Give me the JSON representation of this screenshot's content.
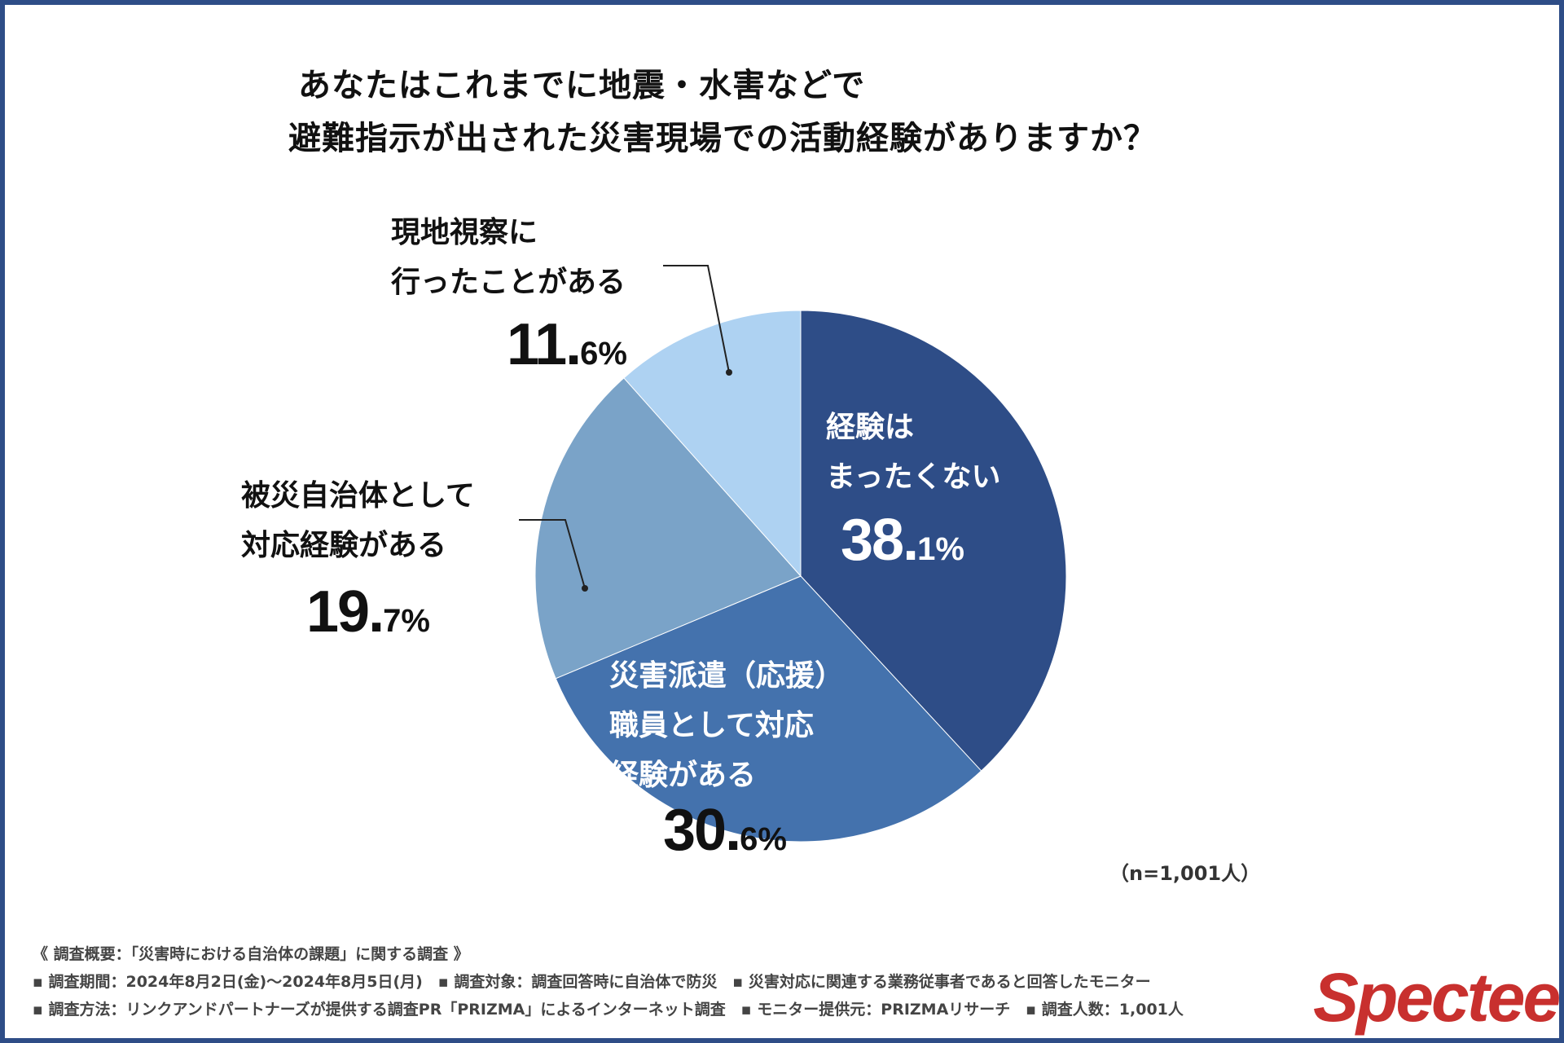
{
  "chart_data": {
    "type": "pie",
    "title": [
      "あなたはこれまでに地震・水害などで",
      "避難指示が出された災害現場での活動経験がありますか？"
    ],
    "slices": [
      {
        "label": [
          "経験は",
          "まったくない"
        ],
        "value": 38.1,
        "int": "38.",
        "dec": "1%",
        "color": "#2e4d87"
      },
      {
        "label": [
          "災害派遣（応援）",
          "職員として対応",
          "経験がある"
        ],
        "value": 30.6,
        "int": "30.",
        "dec": "6%",
        "color": "#4472ad"
      },
      {
        "label": [
          "被災自治体として",
          "対応経験がある"
        ],
        "value": 19.7,
        "int": "19.",
        "dec": "7%",
        "color": "#7aa3c8"
      },
      {
        "label": [
          "現地視察に",
          "行ったことがある"
        ],
        "value": 11.6,
        "int": "11.",
        "dec": "6%",
        "color": "#aed2f2"
      }
    ],
    "sample": "（n=1,001人）"
  },
  "footer": {
    "line1": "《 調査概要：「災害時における自治体の課題」に関する調査 》",
    "line2": "▪ 調査期間：2024年8月2日(金)〜2024年8月5日(月)　▪ 調査対象：調査回答時に自治体で防災　▪ 災害対応に関連する業務従事者であると回答したモニター",
    "line3": "▪ 調査方法：リンクアンドパートナーズが提供する調査PR「PRIZMA」によるインターネット調査　▪ モニター提供元：PRIZMAリサーチ　▪ 調査人数：1,001人"
  },
  "logo": "Spectee"
}
